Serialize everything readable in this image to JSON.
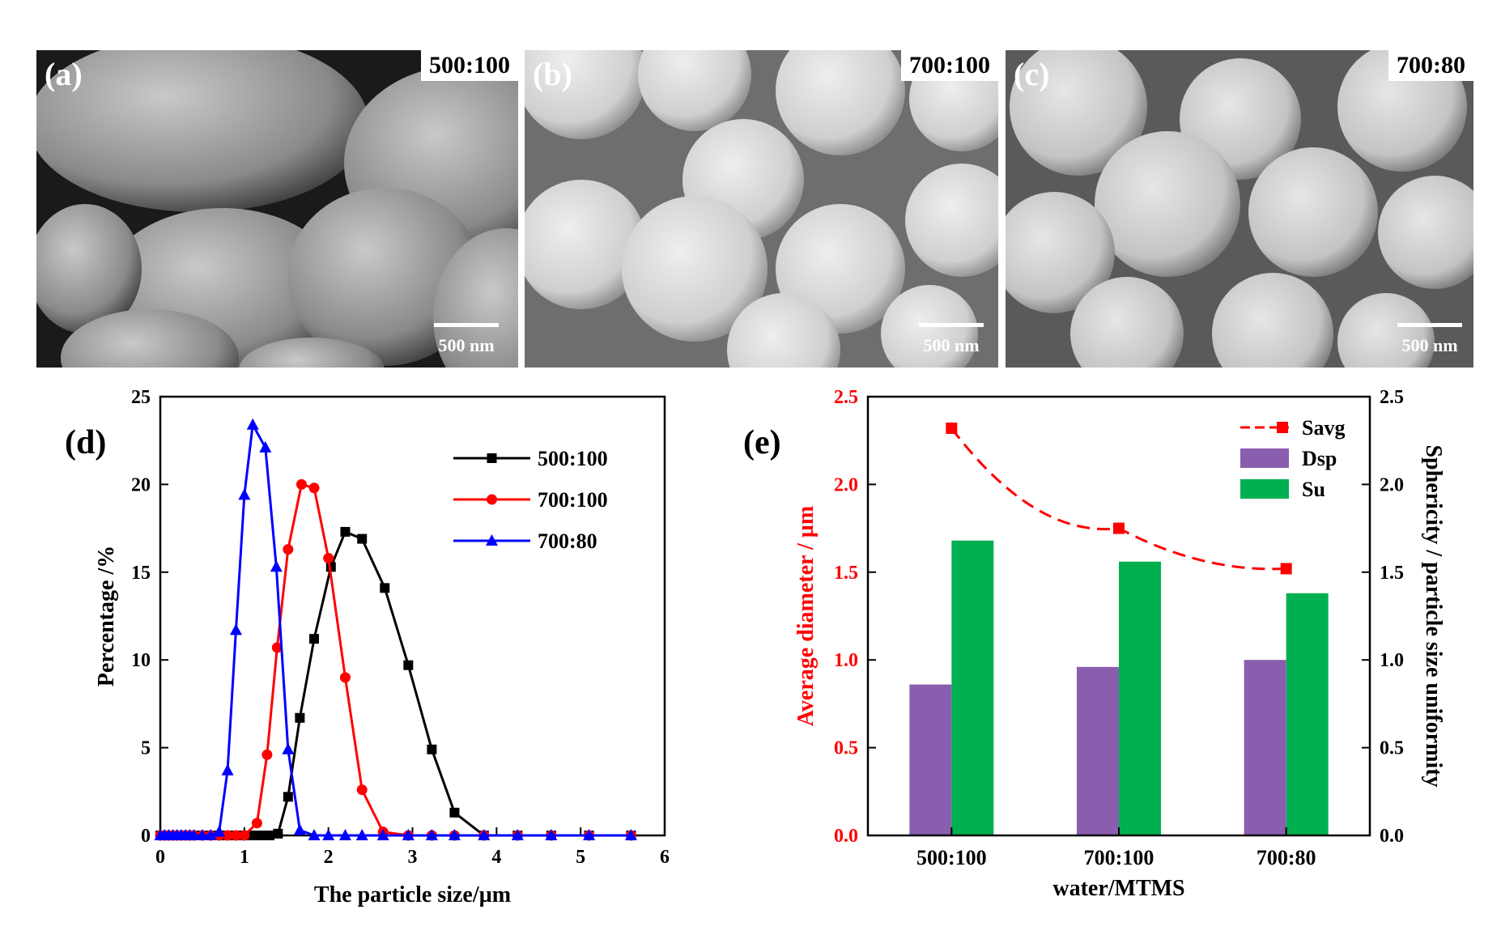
{
  "images": [
    {
      "label": "(a)",
      "tag": "500:100",
      "scale": "500 nm",
      "morphology": "ellipsoid"
    },
    {
      "label": "(b)",
      "tag": "700:100",
      "scale": "500 nm",
      "morphology": "sphere-smooth"
    },
    {
      "label": "(c)",
      "tag": "700:80",
      "scale": "500 nm",
      "morphology": "sphere-large"
    }
  ],
  "chart_data": [
    {
      "panel": "(d)",
      "type": "line",
      "xlabel": "The particle size/µm",
      "ylabel": "Percentage /%",
      "xlim": [
        0,
        6
      ],
      "ylim": [
        0,
        25
      ],
      "xticks": [
        0,
        1,
        2,
        3,
        4,
        5,
        6
      ],
      "yticks": [
        0,
        5,
        10,
        15,
        20,
        25
      ],
      "legend_position": "top-right",
      "series": [
        {
          "name": "500:100",
          "color": "#000000",
          "marker": "square",
          "x": [
            0.0,
            0.05,
            0.1,
            0.15,
            0.2,
            0.25,
            0.3,
            0.35,
            0.4,
            0.5,
            0.6,
            0.7,
            0.8,
            0.9,
            1.0,
            1.1,
            1.2,
            1.3,
            1.4,
            1.52,
            1.66,
            1.83,
            2.03,
            2.2,
            2.4,
            2.67,
            2.95,
            3.23,
            3.5,
            3.85,
            4.25,
            4.65,
            5.1,
            5.6
          ],
          "y": [
            0,
            0,
            0,
            0,
            0,
            0,
            0,
            0,
            0,
            0,
            0,
            0,
            0,
            0,
            0,
            0,
            0,
            0,
            0.1,
            2.2,
            6.7,
            11.2,
            15.3,
            17.3,
            16.9,
            14.1,
            9.7,
            4.9,
            1.3,
            0,
            0,
            0,
            0,
            0
          ]
        },
        {
          "name": "700:100",
          "color": "#ff0000",
          "marker": "circle",
          "x": [
            0.0,
            0.05,
            0.1,
            0.15,
            0.2,
            0.25,
            0.3,
            0.35,
            0.4,
            0.5,
            0.6,
            0.7,
            0.8,
            0.9,
            1.0,
            1.15,
            1.27,
            1.39,
            1.52,
            1.68,
            1.83,
            2.0,
            2.2,
            2.4,
            2.65,
            2.95,
            3.23,
            3.5,
            3.85,
            4.25,
            4.65,
            5.1,
            5.6
          ],
          "y": [
            0,
            0,
            0,
            0,
            0,
            0,
            0,
            0,
            0,
            0,
            0,
            0,
            0,
            0,
            0,
            0.7,
            4.6,
            10.7,
            16.3,
            20.0,
            19.8,
            15.8,
            9.0,
            2.6,
            0.2,
            0,
            0,
            0,
            0,
            0,
            0,
            0,
            0
          ]
        },
        {
          "name": "700:80",
          "color": "#0000ff",
          "marker": "triangle",
          "x": [
            0.0,
            0.05,
            0.1,
            0.15,
            0.2,
            0.25,
            0.3,
            0.35,
            0.4,
            0.5,
            0.6,
            0.7,
            0.8,
            0.9,
            1.0,
            1.1,
            1.25,
            1.38,
            1.52,
            1.66,
            1.83,
            2.0,
            2.2,
            2.4,
            2.65,
            2.95,
            3.23,
            3.5,
            3.85,
            4.25,
            4.65,
            5.1,
            5.6
          ],
          "y": [
            0,
            0,
            0,
            0,
            0,
            0,
            0,
            0,
            0,
            0,
            0,
            0.2,
            3.7,
            11.7,
            19.4,
            23.4,
            22.1,
            15.3,
            4.9,
            0.3,
            0,
            0,
            0,
            0,
            0,
            0,
            0,
            0,
            0,
            0,
            0,
            0,
            0
          ]
        }
      ]
    },
    {
      "panel": "(e)",
      "type": "bar",
      "xlabel": "water/MTMS",
      "ylabel_left": "Average diameter / µm",
      "ylabel_right": "Sphericity / particle size uniformity",
      "ylim_left": [
        0,
        2.5
      ],
      "ylim_right": [
        0,
        2.5
      ],
      "yticks": [
        "0.0",
        "0.5",
        "1.0",
        "1.5",
        "2.0",
        "2.5"
      ],
      "categories": [
        "500:100",
        "700:100",
        "700:80"
      ],
      "legend_position": "top-right",
      "series": [
        {
          "name": "Savg",
          "kind": "line-dashed",
          "axis": "left",
          "color": "#ff0000",
          "values": [
            2.32,
            1.75,
            1.52
          ]
        },
        {
          "name": "Dsp",
          "kind": "bar",
          "axis": "right",
          "color": "#8a5eaf",
          "values": [
            0.86,
            0.96,
            1.0
          ]
        },
        {
          "name": "Su",
          "kind": "bar",
          "axis": "right",
          "color": "#00b050",
          "values": [
            1.68,
            1.56,
            1.38
          ]
        }
      ]
    }
  ]
}
